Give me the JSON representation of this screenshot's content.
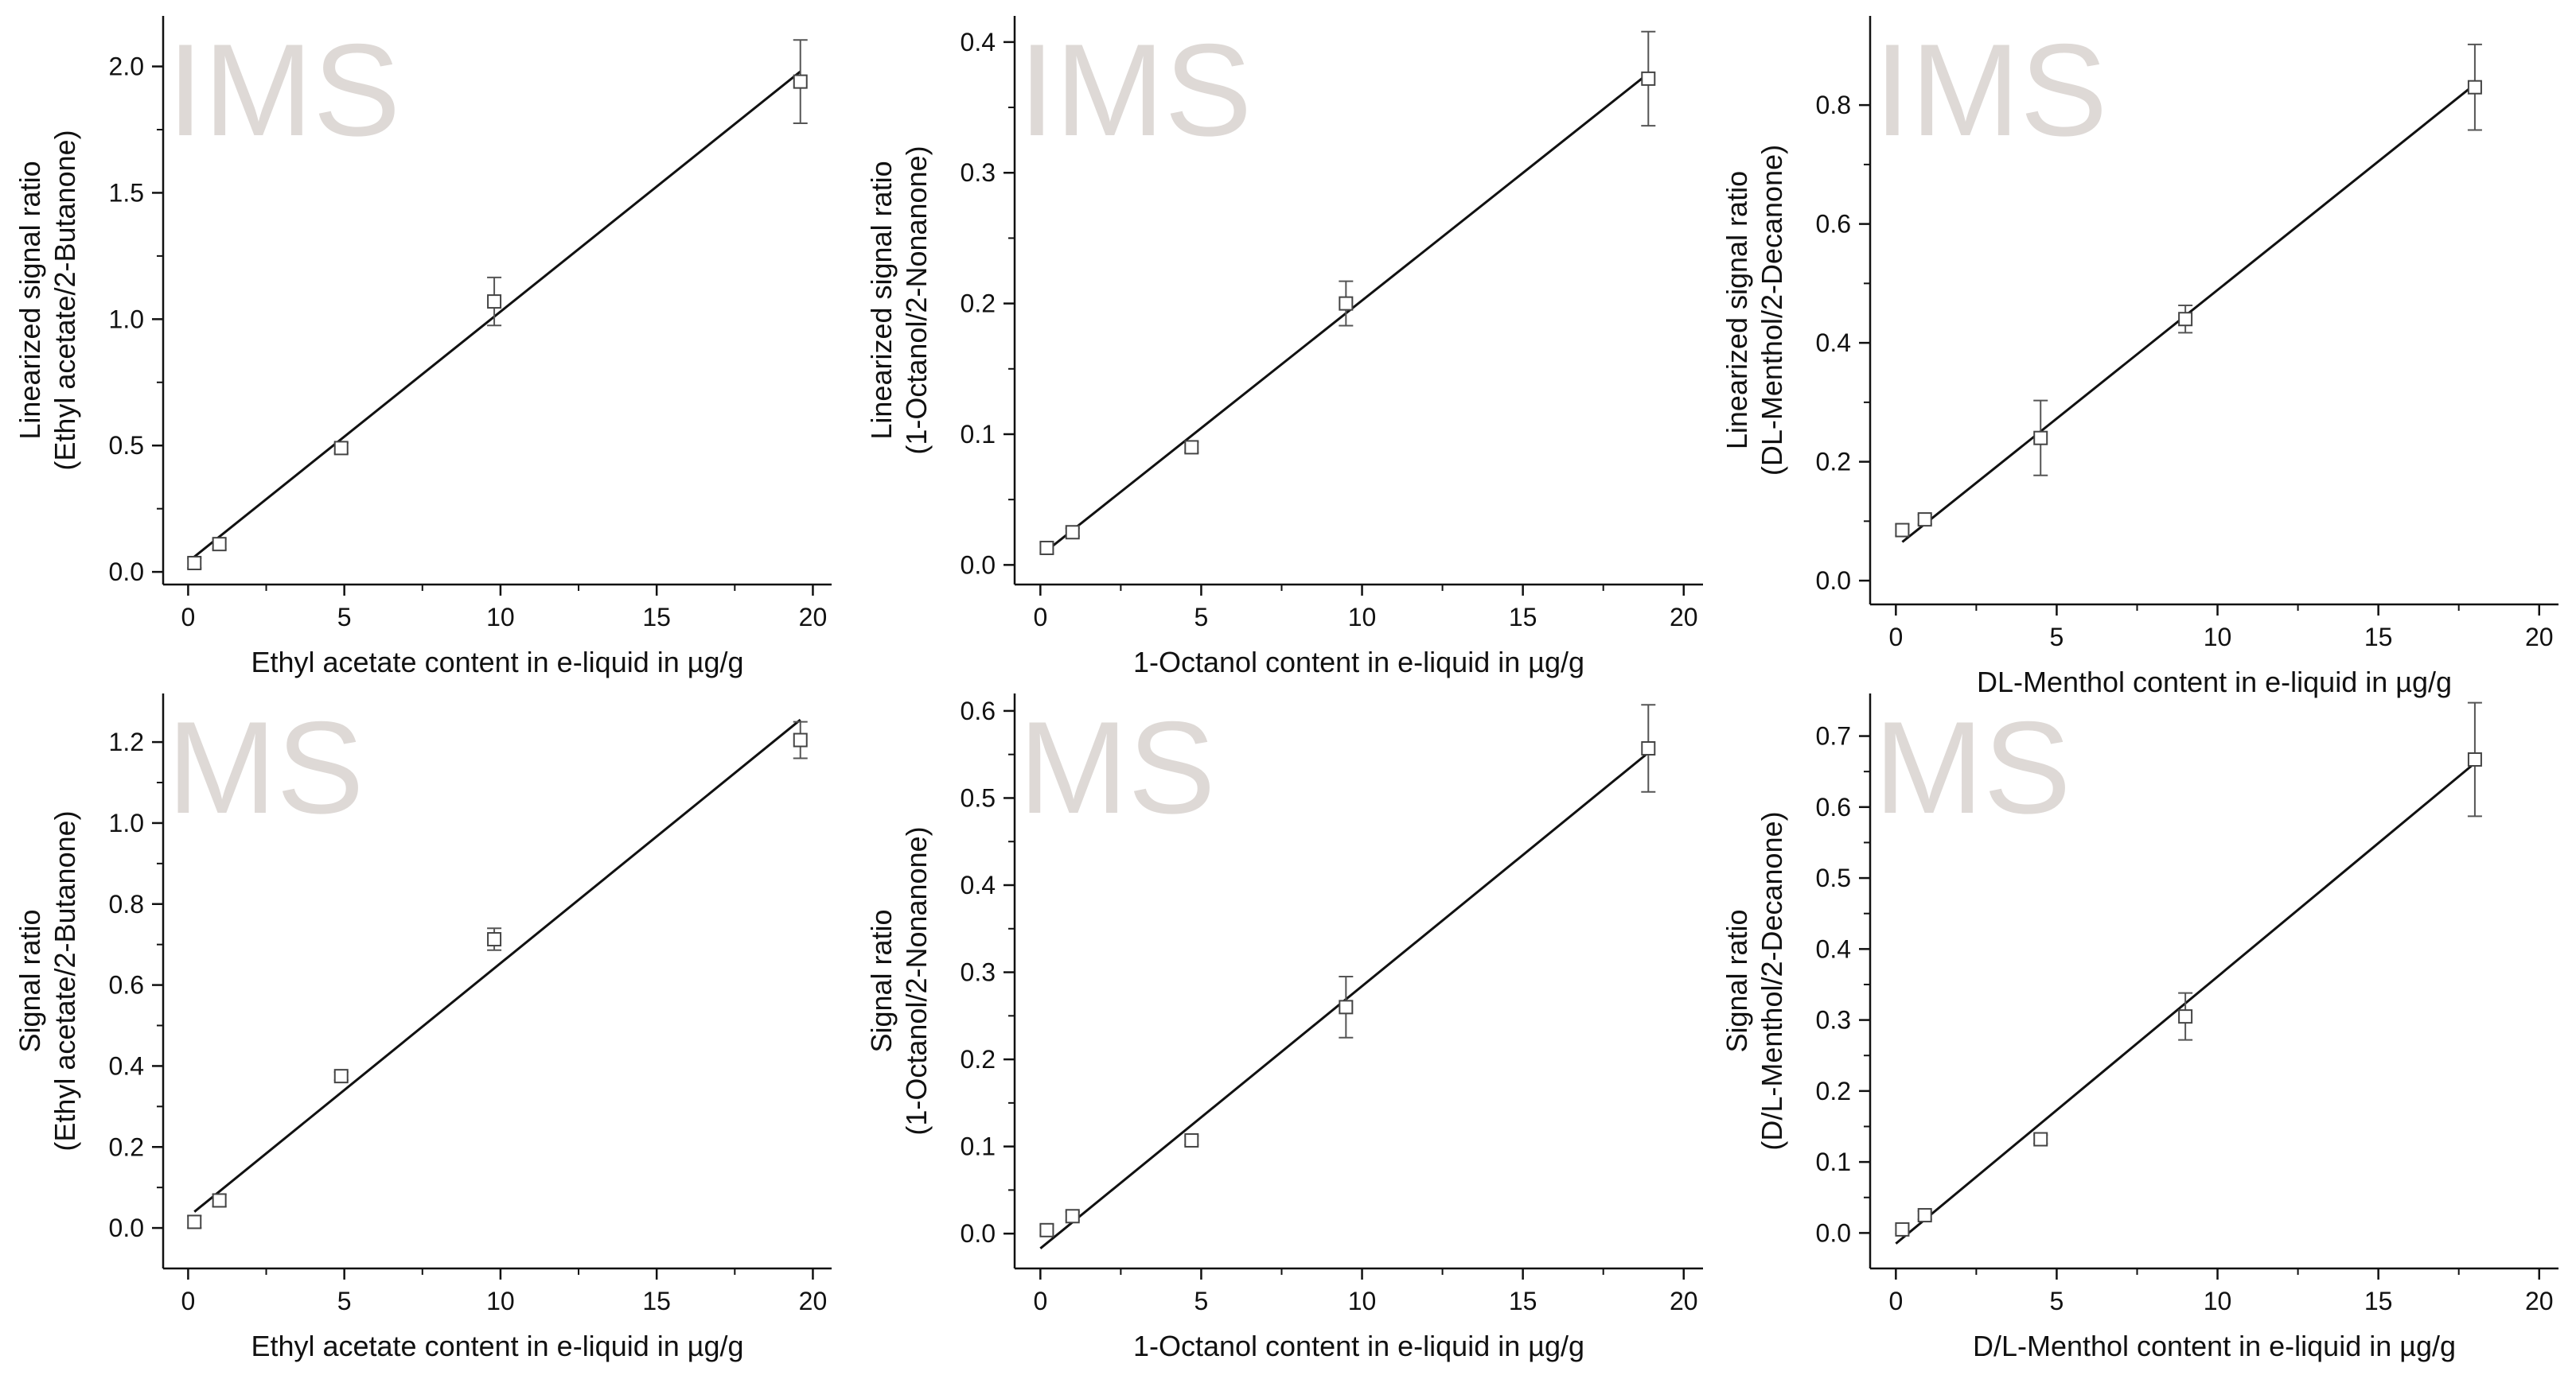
{
  "watermarks": [
    "IMS",
    "IMS",
    "IMS",
    "MS",
    "MS",
    "MS"
  ],
  "colors": {
    "axis": "#111111",
    "fit_line": "#111111",
    "marker": "#444444",
    "error_bar": "#555555",
    "watermark": "#ded9d6"
  },
  "chart_data": [
    {
      "type": "scatter",
      "xlabel": "Ethyl acetate content in e-liquid in µg/g",
      "ylabel": [
        "Linearized signal ratio",
        "(Ethyl acetate/2-Butanone)"
      ],
      "xlim": [
        -0.8,
        20.6
      ],
      "ylim": [
        -0.05,
        2.2
      ],
      "xticks": [
        0,
        5,
        10,
        15,
        20
      ],
      "xtick_labels": [
        "0",
        "5",
        "10",
        "15",
        "20"
      ],
      "yticks": [
        0.0,
        0.5,
        1.0,
        1.5,
        2.0
      ],
      "ytick_labels": [
        "0.0",
        "0.5",
        "1.0",
        "1.5",
        "2.0"
      ],
      "series": [
        {
          "x": [
            0.2,
            1.0,
            4.9,
            9.8,
            19.6
          ],
          "y": [
            0.035,
            0.11,
            0.49,
            1.07,
            1.94
          ],
          "yerr": [
            0.02,
            0.02,
            0.02,
            0.095,
            0.165
          ]
        }
      ],
      "fit": {
        "x": [
          0.2,
          19.6
        ],
        "y": [
          0.06,
          1.98
        ]
      }
    },
    {
      "type": "scatter",
      "xlabel": "1-Octanol content in e-liquid in µg/g",
      "ylabel": [
        "Linearized signal ratio",
        "(1-Octanol/2-Nonanone)"
      ],
      "xlim": [
        -0.8,
        20.6
      ],
      "ylim": [
        -0.015,
        0.42
      ],
      "xticks": [
        0,
        5,
        10,
        15,
        20
      ],
      "xtick_labels": [
        "0",
        "5",
        "10",
        "15",
        "20"
      ],
      "yticks": [
        0.0,
        0.1,
        0.2,
        0.3,
        0.4
      ],
      "ytick_labels": [
        "0.0",
        "0.1",
        "0.2",
        "0.3",
        "0.4"
      ],
      "series": [
        {
          "x": [
            0.2,
            1.0,
            4.7,
            9.5,
            18.9
          ],
          "y": [
            0.013,
            0.025,
            0.09,
            0.2,
            0.372
          ],
          "yerr": [
            0.004,
            0.003,
            0.004,
            0.017,
            0.036
          ]
        }
      ],
      "fit": {
        "x": [
          0.2,
          18.9
        ],
        "y": [
          0.011,
          0.376
        ]
      }
    },
    {
      "type": "scatter",
      "xlabel": "DL-Menthol content in e-liquid in µg/g",
      "ylabel": [
        "Linearized signal ratio",
        "(DL-Menthol/2-Decanone)"
      ],
      "xlim": [
        -0.8,
        20.6
      ],
      "ylim": [
        -0.04,
        0.95
      ],
      "xticks": [
        0,
        5,
        10,
        15,
        20
      ],
      "xtick_labels": [
        "0",
        "5",
        "10",
        "15",
        "20"
      ],
      "yticks": [
        0.0,
        0.2,
        0.4,
        0.6,
        0.8
      ],
      "ytick_labels": [
        "0.0",
        "0.2",
        "0.4",
        "0.6",
        "0.8"
      ],
      "series": [
        {
          "x": [
            0.2,
            0.9,
            4.5,
            9.0,
            18.0
          ],
          "y": [
            0.085,
            0.103,
            0.24,
            0.44,
            0.83
          ],
          "yerr": [
            0.01,
            0.008,
            0.063,
            0.023,
            0.072
          ]
        }
      ],
      "fit": {
        "x": [
          0.2,
          18.0
        ],
        "y": [
          0.065,
          0.835
        ]
      }
    },
    {
      "type": "scatter",
      "xlabel": "Ethyl acetate content in e-liquid in µg/g",
      "ylabel": [
        "Signal ratio",
        "(Ethyl acetate/2-Butanone)"
      ],
      "xlim": [
        -0.8,
        20.6
      ],
      "ylim": [
        -0.1,
        1.32
      ],
      "xticks": [
        0,
        5,
        10,
        15,
        20
      ],
      "xtick_labels": [
        "0",
        "5",
        "10",
        "15",
        "20"
      ],
      "yticks": [
        0.0,
        0.2,
        0.4,
        0.6,
        0.8,
        1.0,
        1.2
      ],
      "ytick_labels": [
        "0.0",
        "0.2",
        "0.4",
        "0.6",
        "0.8",
        "1.0",
        "1.2"
      ],
      "series": [
        {
          "x": [
            0.2,
            1.0,
            4.9,
            9.8,
            19.6
          ],
          "y": [
            0.015,
            0.068,
            0.375,
            0.713,
            1.205
          ],
          "yerr": [
            0.015,
            0.015,
            0.01,
            0.027,
            0.045
          ]
        }
      ],
      "fit": {
        "x": [
          0.2,
          19.6
        ],
        "y": [
          0.04,
          1.255
        ]
      }
    },
    {
      "type": "scatter",
      "xlabel": "1-Octanol content in e-liquid in µg/g",
      "ylabel": [
        "Signal ratio",
        "(1-Octanol/2-Nonanone)"
      ],
      "xlim": [
        -0.8,
        20.6
      ],
      "ylim": [
        -0.04,
        0.62
      ],
      "xticks": [
        0,
        5,
        10,
        15,
        20
      ],
      "xtick_labels": [
        "0",
        "5",
        "10",
        "15",
        "20"
      ],
      "yticks": [
        0.0,
        0.1,
        0.2,
        0.3,
        0.4,
        0.5,
        0.6
      ],
      "ytick_labels": [
        "0.0",
        "0.1",
        "0.2",
        "0.3",
        "0.4",
        "0.5",
        "0.6"
      ],
      "series": [
        {
          "x": [
            0.2,
            1.0,
            4.7,
            9.5,
            18.9
          ],
          "y": [
            0.004,
            0.02,
            0.107,
            0.26,
            0.557
          ],
          "yerr": [
            0.006,
            0.005,
            0.005,
            0.035,
            0.05
          ]
        }
      ],
      "fit": {
        "x": [
          0.0,
          18.9
        ],
        "y": [
          -0.017,
          0.552
        ]
      }
    },
    {
      "type": "scatter",
      "xlabel": "D/L-Menthol content in e-liquid in µg/g",
      "ylabel": [
        "Signal ratio",
        "(D/L-Menthol/2-Decanone)"
      ],
      "xlim": [
        -0.8,
        20.6
      ],
      "ylim": [
        -0.05,
        0.76
      ],
      "xticks": [
        0,
        5,
        10,
        15,
        20
      ],
      "xtick_labels": [
        "0",
        "5",
        "10",
        "15",
        "20"
      ],
      "yticks": [
        0.0,
        0.1,
        0.2,
        0.3,
        0.4,
        0.5,
        0.6,
        0.7
      ],
      "ytick_labels": [
        "0.0",
        "0.1",
        "0.2",
        "0.3",
        "0.4",
        "0.5",
        "0.6",
        "0.7"
      ],
      "series": [
        {
          "x": [
            0.2,
            0.9,
            4.5,
            9.0,
            18.0
          ],
          "y": [
            0.005,
            0.025,
            0.132,
            0.305,
            0.667
          ],
          "yerr": [
            0.006,
            0.006,
            0.006,
            0.033,
            0.08
          ]
        }
      ],
      "fit": {
        "x": [
          0.0,
          18.0
        ],
        "y": [
          -0.015,
          0.662
        ]
      }
    }
  ]
}
